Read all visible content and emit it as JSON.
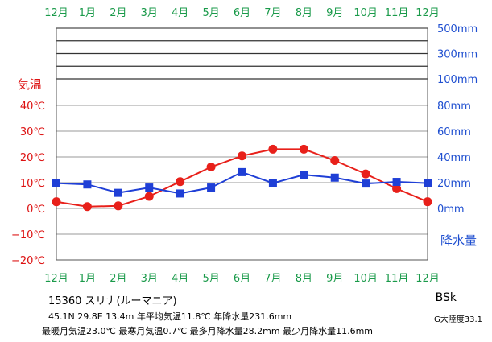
{
  "chart_data": {
    "type": "line",
    "categories": [
      "12月",
      "1月",
      "2月",
      "3月",
      "4月",
      "5月",
      "6月",
      "7月",
      "8月",
      "9月",
      "10月",
      "11月",
      "12月"
    ],
    "series": [
      {
        "name": "気温",
        "unit": "℃",
        "axis": "left",
        "color": "#e8201a",
        "marker": "circle",
        "values": [
          2.6,
          0.7,
          1.0,
          4.7,
          10.4,
          16.1,
          20.4,
          23.0,
          23.0,
          18.6,
          13.4,
          7.7,
          2.6
        ]
      },
      {
        "name": "降水量",
        "unit": "mm",
        "axis": "right",
        "color": "#1f3fd6",
        "marker": "square",
        "values": [
          19.6,
          18.6,
          12.1,
          16.2,
          11.6,
          16.2,
          28.2,
          19.6,
          26.2,
          23.9,
          19.3,
          20.6,
          19.6
        ]
      }
    ],
    "left_axis": {
      "title": "気温",
      "ylim": [
        -20,
        40
      ],
      "ticks": [
        -20,
        -10,
        0,
        10,
        20,
        30,
        40
      ],
      "tick_labels": [
        "−20℃",
        "−10℃",
        "0℃",
        "10℃",
        "20℃",
        "30℃",
        "40℃"
      ]
    },
    "right_axis": {
      "title": "降水量",
      "ylim": [
        0,
        80
      ],
      "ticks": [
        0,
        20,
        40,
        60,
        80
      ],
      "tick_labels": [
        "0mm",
        "20mm",
        "40mm",
        "60mm",
        "80mm"
      ],
      "compressed_ticks": [
        100,
        300,
        500
      ],
      "compressed_tick_labels": [
        "100mm",
        "300mm",
        "500mm"
      ],
      "compressed_lines": [
        100,
        200,
        300,
        400,
        500
      ]
    },
    "grid": true
  },
  "station": {
    "label": "15360  スリナ(ルーマニア)"
  },
  "stats": {
    "line1": "45.1N  29.8E  13.4m  年平均気温11.8℃  年降水量231.6mm",
    "line2": "最暖月気温23.0℃  最寒月気温0.7℃  最多月降水量28.2mm  最少月降水量11.6mm"
  },
  "koppen": {
    "code": "BSk",
    "continentality": "G大陸度33.1"
  }
}
